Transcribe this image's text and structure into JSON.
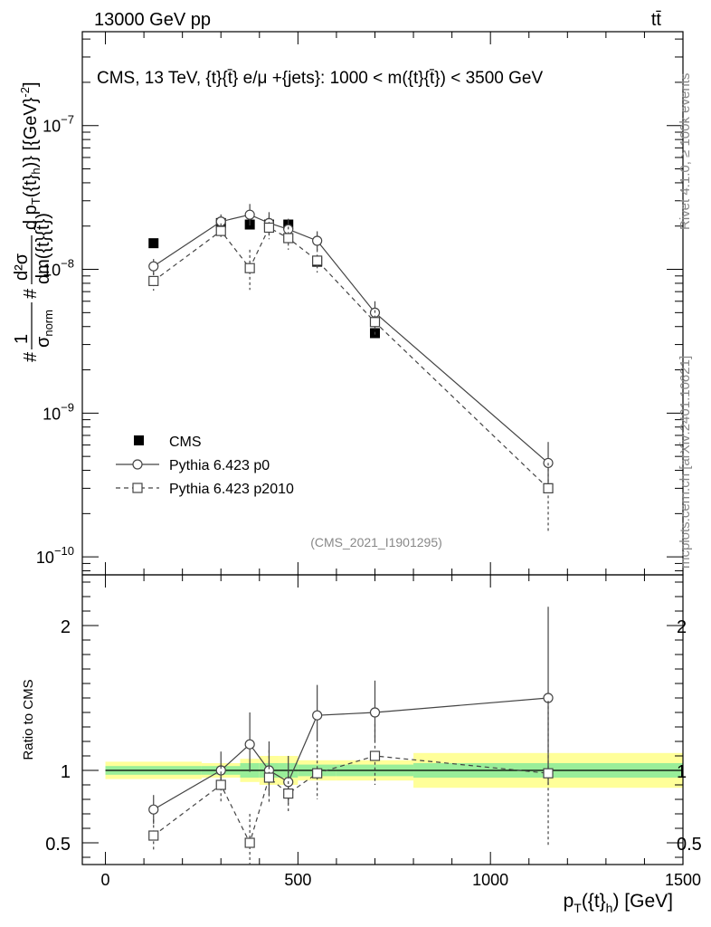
{
  "header": {
    "left": "13000 GeV pp",
    "right": "tt̄"
  },
  "side_labels": {
    "rivet": "Rivet 4.1.0, ≥ 100k events",
    "mcplots": "mcplots.cern.ch [arXiv:2401.10621]"
  },
  "chart_data": {
    "type": "scatter",
    "title": "CMS, 13 TeV, {t}{t̄} e/μ +{jets}: 1000 < m({t}{t̄}) < 3500 GeV",
    "analysis_id": "(CMS_2021_I1901295)",
    "xlabel": "p_T({t}_h) [GeV]",
    "xlabel_parts": {
      "p": "p",
      "sub_T": "T",
      "open": "({t}",
      "sub_h": "h",
      "close": ") [GeV]"
    },
    "ylabel": "#frac{1}{σ_norm} #frac{d²σ}{dm({t}{t̄}) d p_T({t}_h)} [(GeV)⁻²]",
    "ylabel_parts": {
      "hash1": "#",
      "one": "1",
      "sigma_norm": "σ",
      "sub_norm": "norm",
      "hash2": "#",
      "numer": "d²σ",
      "denom": "dm({t}{t̄})",
      "rest": "d p",
      "sub_T": "T",
      "open": "({t}",
      "sub_h": "h",
      "close": ")} [{GeV}",
      "sup": "-2",
      "end": "]"
    },
    "xlim": [
      -60,
      1500
    ],
    "x_ticks": [
      0,
      500,
      1000,
      1500
    ],
    "x_tick_labels": [
      "0",
      "500",
      "1000",
      "1500"
    ],
    "ylim": [
      7.5e-11,
      4.5e-07
    ],
    "y_scale": "log",
    "y_ticks": [
      1e-10,
      1e-09,
      1e-08,
      1e-07
    ],
    "y_tick_labels": [
      {
        "base": "10",
        "exp": "−10"
      },
      {
        "base": "10",
        "exp": "−9"
      },
      {
        "base": "10",
        "exp": "−8"
      },
      {
        "base": "10",
        "exp": "−7"
      }
    ],
    "ratio_ylabel": "Ratio to CMS",
    "ratio_ylim": [
      0.35,
      2.35
    ],
    "ratio_ticks": [
      0.5,
      1,
      2
    ],
    "ratio_tick_labels": [
      "0.5",
      "1",
      "2"
    ],
    "legend_position": "bottom-left",
    "x": [
      125,
      300,
      375,
      425,
      475,
      550,
      700,
      1150
    ],
    "series": [
      {
        "name": "CMS",
        "marker": "filled-square",
        "line": "none",
        "values": [
          1.52e-08,
          2.1e-08,
          2.05e-08,
          2.05e-08,
          2.05e-08,
          1.13e-08,
          3.6e-09,
          3e-10
        ],
        "err_down": [
          8e-10,
          1e-09,
          1e-09,
          1e-09,
          1e-09,
          6e-10,
          2.5e-10,
          2e-11
        ],
        "err_up": [
          8e-10,
          1e-09,
          1e-09,
          1e-09,
          1e-09,
          6e-10,
          2.5e-10,
          2e-11
        ],
        "band_edges": [
          0,
          250,
          350,
          400,
          450,
          500,
          600,
          800,
          1500
        ],
        "band_inner": [
          0.03,
          0.03,
          0.05,
          0.05,
          0.05,
          0.04,
          0.04,
          0.05
        ],
        "band_outer": [
          0.06,
          0.05,
          0.08,
          0.1,
          0.1,
          0.07,
          0.07,
          0.12
        ]
      },
      {
        "name": "Pythia 6.423 p0",
        "marker": "open-circle",
        "line": "solid",
        "values": [
          1.05e-08,
          2.15e-08,
          2.4e-08,
          2.1e-08,
          1.9e-08,
          1.58e-08,
          5e-09,
          4.5e-10
        ],
        "err_down": [
          1.3e-09,
          2.4e-09,
          3.8e-09,
          3.5e-09,
          3e-09,
          2.2e-09,
          1e-09,
          1.5e-10
        ],
        "err_up": [
          1.3e-09,
          2.6e-09,
          4.5e-09,
          4e-09,
          3.5e-09,
          2.6e-09,
          1e-09,
          1.8e-10
        ],
        "ratio": [
          0.73,
          1.0,
          1.18,
          1.0,
          0.92,
          1.38,
          1.4,
          1.5
        ],
        "ratio_err_down": [
          0.1,
          0.13,
          0.19,
          0.17,
          0.15,
          0.18,
          0.2,
          0.6
        ],
        "ratio_err_up": [
          0.1,
          0.13,
          0.22,
          0.2,
          0.18,
          0.21,
          0.22,
          0.63
        ]
      },
      {
        "name": "Pythia 6.423 p2010",
        "marker": "open-square",
        "line": "dashed",
        "values": [
          8.3e-09,
          1.85e-08,
          1.02e-08,
          1.95e-08,
          1.65e-08,
          1.15e-08,
          4.3e-09,
          3e-10
        ],
        "err_down": [
          1.2e-09,
          2.2e-09,
          3e-09,
          3.3e-09,
          2.8e-09,
          2e-09,
          9e-10,
          1.5e-10
        ],
        "err_up": [
          1.2e-09,
          2.4e-09,
          3.5e-09,
          3.8e-09,
          3.3e-09,
          2.3e-09,
          9e-10,
          1.5e-10
        ],
        "ratio": [
          0.55,
          0.9,
          0.5,
          0.95,
          0.84,
          0.98,
          1.1,
          0.98
        ],
        "ratio_err_down": [
          0.11,
          0.13,
          0.2,
          0.17,
          0.14,
          0.18,
          0.2,
          0.5
        ],
        "ratio_err_up": [
          0.11,
          0.13,
          0.2,
          0.19,
          0.16,
          0.2,
          0.22,
          0.5
        ]
      }
    ]
  }
}
